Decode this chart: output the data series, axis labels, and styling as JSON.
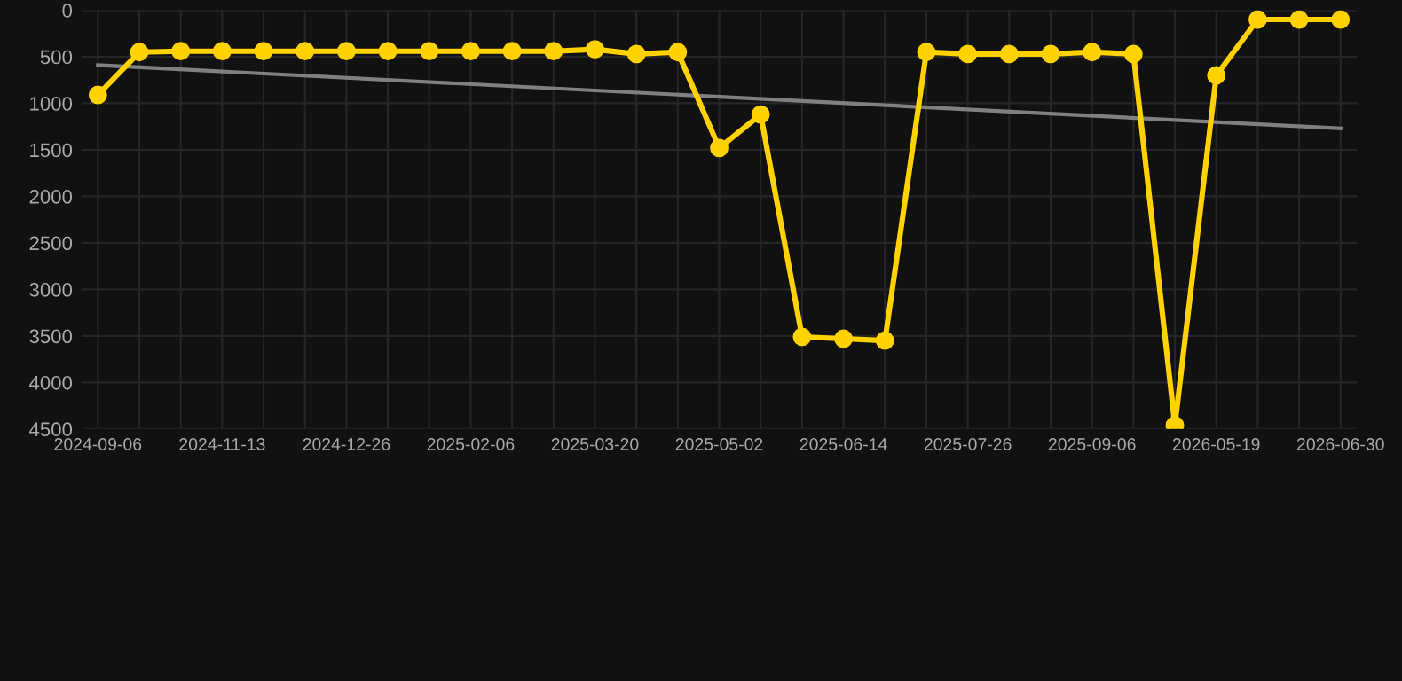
{
  "chart_data": {
    "type": "line",
    "categories": [
      "2024-09-06",
      null,
      null,
      "2024-11-13",
      null,
      null,
      "2024-12-26",
      null,
      null,
      "2025-02-06",
      null,
      null,
      "2025-03-20",
      null,
      null,
      "2025-05-02",
      null,
      null,
      "2025-06-14",
      null,
      null,
      "2025-07-26",
      null,
      null,
      "2025-09-06",
      null,
      null,
      "2026-05-19",
      null,
      null,
      "2026-06-30"
    ],
    "series": [
      {
        "color": "#ffd200",
        "marker": "circle",
        "values": [
          910,
          450,
          440,
          440,
          440,
          440,
          440,
          440,
          440,
          440,
          440,
          440,
          420,
          470,
          450,
          1480,
          1120,
          3510,
          3530,
          3550,
          450,
          470,
          470,
          470,
          450,
          470,
          4460,
          700,
          100,
          100,
          100
        ]
      },
      {
        "type": "line",
        "color": "#808080",
        "marker": "none",
        "values": [
          590,
          null,
          null,
          null,
          null,
          null,
          null,
          null,
          null,
          null,
          null,
          null,
          null,
          null,
          null,
          null,
          null,
          null,
          null,
          null,
          null,
          null,
          null,
          null,
          null,
          null,
          null,
          null,
          null,
          null,
          1270
        ]
      }
    ],
    "ylim": [
      4500,
      0
    ],
    "yticks": [
      0,
      500,
      1000,
      1500,
      2000,
      2500,
      3000,
      3500,
      4000,
      4500
    ],
    "grid": true
  }
}
